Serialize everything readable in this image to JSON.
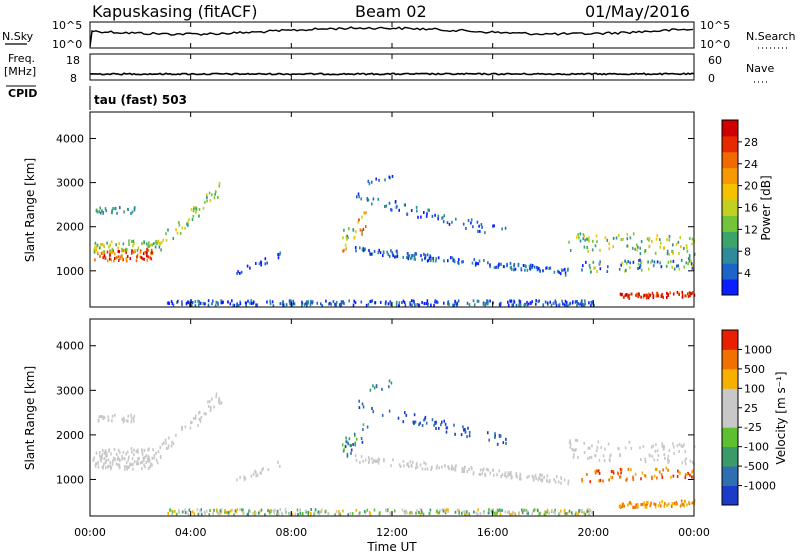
{
  "header": {
    "station": "Kapuskasing (fitACF)",
    "beam": "Beam 02",
    "date": "01/May/2016"
  },
  "left_panel_labels": {
    "nsky": "N.Sky",
    "freq_line1": "Freq.",
    "freq_line2": "[MHz]",
    "cpid": "CPID"
  },
  "right_panel_labels": {
    "nsearch": "N.Search",
    "nave": "Nave"
  },
  "mode_label": "tau (fast) 503",
  "noise_axis": {
    "left_ticks": [
      "10^5",
      "10^0"
    ],
    "right_ticks": [
      "10^5",
      "10^0"
    ]
  },
  "freq_axis": {
    "left_ticks": [
      "18",
      "8"
    ],
    "right_ticks": [
      "60",
      "0"
    ]
  },
  "chart_data": [
    {
      "type": "line",
      "name": "noise",
      "x_range_hours": [
        0,
        24
      ],
      "series": [
        {
          "level": 0.55
        }
      ]
    },
    {
      "type": "line",
      "name": "frequency",
      "x_range_hours": [
        0,
        24
      ],
      "series": [
        {
          "level": 0.5
        }
      ]
    },
    {
      "type": "heatmap",
      "name": "power",
      "ylabel": "Slant Range [km]",
      "ylim": [
        180,
        4600
      ],
      "yticks": [
        "1000",
        "2000",
        "3000",
        "4000"
      ],
      "colorbar": {
        "label": "Power [dB]",
        "ticks": [
          "4",
          "8",
          "12",
          "16",
          "20",
          "24",
          "28"
        ],
        "colors": [
          "#0a1eff",
          "#1e64c8",
          "#2f8a99",
          "#3aa46a",
          "#74c43a",
          "#c4d020",
          "#f5c200",
          "#f59a00",
          "#f06a00",
          "#e82a00",
          "#d00000"
        ]
      }
    },
    {
      "type": "heatmap",
      "name": "velocity",
      "ylabel": "Slant Range [km]",
      "ylim": [
        180,
        4600
      ],
      "yticks": [
        "1000",
        "2000",
        "3000",
        "4000"
      ],
      "xlabel": "Time UT",
      "xticks": [
        "00:00",
        "04:00",
        "08:00",
        "12:00",
        "16:00",
        "20:00",
        "00:00"
      ],
      "colorbar": {
        "label": "Velocity [m s⁻¹]",
        "ticks": [
          "1000",
          "500",
          "100",
          "25",
          "-25",
          "-100",
          "-500",
          "-1000"
        ],
        "colors": [
          "#1a3cc8",
          "#2f6fb0",
          "#3a9a6a",
          "#5cc030",
          "#c8c8c8",
          "#c8c8c8",
          "#f5b000",
          "#f07000",
          "#e82000"
        ]
      }
    }
  ]
}
